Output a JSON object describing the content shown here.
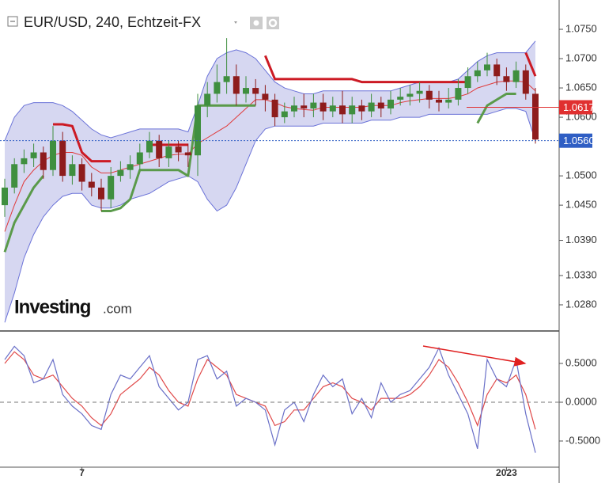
{
  "chart_data": [
    {
      "type": "candlestick",
      "title": "EUR/USD, 240, Echtzeit-FX",
      "watermark": {
        "brand": "Investing",
        "suffix": ".com"
      },
      "open": [
        1.045,
        1.048,
        1.052,
        1.053,
        1.054,
        1.051,
        1.056,
        1.05,
        1.052,
        1.049,
        1.048,
        1.046,
        1.05,
        1.051,
        1.052,
        1.054,
        1.056,
        1.053,
        1.055,
        1.054,
        1.0535,
        1.062,
        1.064,
        1.066,
        1.067,
        1.064,
        1.065,
        1.064,
        1.063,
        1.06,
        1.061,
        1.062,
        1.0615,
        1.0625,
        1.061,
        1.062,
        1.0605,
        1.062,
        1.061,
        1.0625,
        1.0615,
        1.063,
        1.0635,
        1.064,
        1.0645,
        1.063,
        1.0625,
        1.063,
        1.065,
        1.067,
        1.068,
        1.069,
        1.067,
        1.066,
        1.068,
        1.064
      ],
      "high": [
        1.0495,
        1.053,
        1.0545,
        1.0555,
        1.055,
        1.0585,
        1.0575,
        1.0535,
        1.053,
        1.0505,
        1.0495,
        1.0515,
        1.0525,
        1.0535,
        1.0555,
        1.0575,
        1.057,
        1.056,
        1.056,
        1.0555,
        1.064,
        1.066,
        1.069,
        1.0735,
        1.069,
        1.067,
        1.0665,
        1.0655,
        1.064,
        1.0625,
        1.0635,
        1.064,
        1.064,
        1.064,
        1.0635,
        1.0645,
        1.0635,
        1.063,
        1.064,
        1.0635,
        1.0645,
        1.065,
        1.0655,
        1.066,
        1.0655,
        1.0645,
        1.065,
        1.0665,
        1.0685,
        1.0695,
        1.071,
        1.07,
        1.0685,
        1.0695,
        1.069,
        1.065
      ],
      "low": [
        1.043,
        1.047,
        1.0505,
        1.0515,
        1.0495,
        1.05,
        1.049,
        1.0485,
        1.0475,
        1.0465,
        1.044,
        1.0445,
        1.049,
        1.0495,
        1.051,
        1.053,
        1.0515,
        1.0515,
        1.0525,
        1.0515,
        1.05,
        1.06,
        1.0625,
        1.064,
        1.062,
        1.0625,
        1.062,
        1.061,
        1.0585,
        1.059,
        1.06,
        1.06,
        1.06,
        1.0595,
        1.06,
        1.059,
        1.059,
        1.0595,
        1.06,
        1.06,
        1.0605,
        1.062,
        1.062,
        1.0625,
        1.0615,
        1.061,
        1.0615,
        1.062,
        1.064,
        1.066,
        1.067,
        1.0655,
        1.0645,
        1.065,
        1.063,
        1.0555
      ],
      "close": [
        1.048,
        1.052,
        1.053,
        1.054,
        1.051,
        1.056,
        1.05,
        1.052,
        1.049,
        1.048,
        1.046,
        1.05,
        1.051,
        1.052,
        1.054,
        1.056,
        1.053,
        1.055,
        1.054,
        1.0535,
        1.062,
        1.064,
        1.066,
        1.067,
        1.064,
        1.065,
        1.064,
        1.063,
        1.06,
        1.061,
        1.062,
        1.0615,
        1.0625,
        1.061,
        1.062,
        1.0605,
        1.062,
        1.061,
        1.0625,
        1.0615,
        1.063,
        1.0635,
        1.064,
        1.0645,
        1.063,
        1.0625,
        1.063,
        1.065,
        1.067,
        1.068,
        1.069,
        1.067,
        1.066,
        1.068,
        1.064,
        1.0562
      ],
      "up_color": "#3f8f3f",
      "down_color": "#8e1c1c",
      "ylim": [
        1.02354,
        1.08
      ],
      "yticks": [
        {
          "value": 1.075,
          "label": "1.0750"
        },
        {
          "value": 1.07,
          "label": "1.0700"
        },
        {
          "value": 1.065,
          "label": "1.0650"
        },
        {
          "value": 1.06,
          "label": "1.0600"
        },
        {
          "value": 1.05,
          "label": "1.0500"
        },
        {
          "value": 1.045,
          "label": "1.0450"
        },
        {
          "value": 1.039,
          "label": "1.0390"
        },
        {
          "value": 1.033,
          "label": "1.0330"
        },
        {
          "value": 1.028,
          "label": "1.0280"
        }
      ],
      "band": {
        "fill": "#d6d7f1",
        "color": "#6b73d8",
        "upper": [
          1.056,
          1.06,
          1.062,
          1.0625,
          1.0625,
          1.0625,
          1.062,
          1.061,
          1.0595,
          1.058,
          1.057,
          1.0565,
          1.057,
          1.0575,
          1.058,
          1.058,
          1.058,
          1.058,
          1.058,
          1.0575,
          1.062,
          1.067,
          1.07,
          1.071,
          1.0715,
          1.071,
          1.07,
          1.068,
          1.066,
          1.065,
          1.0645,
          1.064,
          1.064,
          1.0645,
          1.0645,
          1.0645,
          1.0645,
          1.0645,
          1.0645,
          1.0645,
          1.0645,
          1.065,
          1.0655,
          1.066,
          1.066,
          1.066,
          1.066,
          1.0665,
          1.068,
          1.0695,
          1.0705,
          1.071,
          1.071,
          1.071,
          1.071,
          1.073
        ],
        "lower": [
          1.025,
          1.03,
          1.036,
          1.04,
          1.043,
          1.045,
          1.0465,
          1.047,
          1.047,
          1.045,
          1.0445,
          1.0445,
          1.045,
          1.046,
          1.0465,
          1.047,
          1.048,
          1.049,
          1.0495,
          1.05,
          1.049,
          1.046,
          1.044,
          1.045,
          1.048,
          1.052,
          1.056,
          1.058,
          1.0585,
          1.0585,
          1.0585,
          1.0585,
          1.0585,
          1.059,
          1.059,
          1.059,
          1.059,
          1.059,
          1.0595,
          1.0595,
          1.0595,
          1.06,
          1.06,
          1.06,
          1.0605,
          1.0605,
          1.0605,
          1.0605,
          1.0605,
          1.0605,
          1.0605,
          1.061,
          1.0615,
          1.0615,
          1.061,
          1.056
        ]
      },
      "overlays": [
        {
          "color": "#e03a3a",
          "weight": "thin",
          "values": [
            1.0405,
            1.045,
            1.049,
            1.051,
            1.0525,
            1.0535,
            1.054,
            1.054,
            1.0535,
            1.0515,
            1.0505,
            1.0505,
            1.051,
            1.0515,
            1.052,
            1.0525,
            1.053,
            1.0535,
            1.0537,
            1.0537,
            1.0555,
            1.0565,
            1.0575,
            1.0585,
            1.06,
            1.0615,
            1.063,
            1.063,
            1.0625,
            1.0618,
            1.0615,
            1.0613,
            1.0612,
            1.0617,
            1.0617,
            1.0617,
            1.0617,
            1.0617,
            1.062,
            1.062,
            1.062,
            1.0625,
            1.0628,
            1.063,
            1.0632,
            1.0632,
            1.0632,
            1.0635,
            1.064,
            1.065,
            1.0655,
            1.066,
            1.0662,
            1.0662,
            1.066,
            1.0645
          ]
        },
        {
          "color": "#cc1a24",
          "weight": "bold",
          "values": [
            null,
            null,
            null,
            null,
            null,
            1.0588,
            1.0588,
            1.0585,
            1.054,
            1.0525,
            1.0525,
            1.0525,
            null,
            null,
            null,
            1.0553,
            1.0553,
            1.0553,
            1.0553,
            1.0553,
            null,
            null,
            null,
            null,
            null,
            null,
            null,
            1.0705,
            1.0665,
            1.0665,
            1.0665,
            1.0665,
            1.0665,
            1.0665,
            1.0665,
            1.0665,
            1.0665,
            1.066,
            1.066,
            1.066,
            1.066,
            1.066,
            1.066,
            1.066,
            1.066,
            1.066,
            1.066,
            1.066,
            1.066,
            null,
            null,
            null,
            null,
            null,
            1.071,
            1.067
          ]
        },
        {
          "color": "#5a9a4a",
          "weight": "bold",
          "values": [
            1.037,
            1.042,
            1.045,
            1.048,
            1.05,
            null,
            null,
            null,
            null,
            null,
            1.044,
            1.044,
            1.0445,
            1.046,
            1.051,
            1.051,
            1.051,
            1.051,
            1.051,
            1.05,
            1.062,
            1.062,
            1.062,
            1.062,
            1.062,
            1.062,
            1.062,
            null,
            null,
            null,
            null,
            null,
            null,
            null,
            null,
            null,
            null,
            null,
            null,
            null,
            null,
            null,
            null,
            null,
            null,
            null,
            null,
            null,
            null,
            1.059,
            1.062,
            1.063,
            1.064,
            1.064,
            null,
            null
          ]
        }
      ],
      "price_markers": [
        {
          "value": 1.0617,
          "label": "1.0617",
          "color": "#e03030"
        },
        {
          "value": 1.056,
          "label": "1.0560",
          "color": "#2f5ec4"
        }
      ]
    },
    {
      "type": "line",
      "categories": [
        null,
        null,
        null,
        null,
        null,
        null,
        null,
        null,
        "7",
        null,
        null,
        null,
        null,
        null,
        null,
        null,
        null,
        null,
        null,
        null,
        null,
        null,
        null,
        null,
        null,
        null,
        null,
        null,
        null,
        null,
        null,
        null,
        null,
        null,
        null,
        null,
        null,
        null,
        null,
        null,
        null,
        null,
        null,
        null,
        null,
        null,
        null,
        null,
        null,
        null,
        null,
        null,
        "2023",
        null,
        null,
        null
      ],
      "ylim": [
        -0.837,
        0.898
      ],
      "yticks": [
        {
          "value": 0.5,
          "label": "0.5000"
        },
        {
          "value": 0,
          "label": "0.0000"
        },
        {
          "value": -0.5,
          "label": "-0.5000"
        }
      ],
      "zero_line": true,
      "series": [
        {
          "color": "#6a70c8",
          "values": [
            0.55,
            0.72,
            0.6,
            0.25,
            0.3,
            0.55,
            0.1,
            -0.05,
            -0.15,
            -0.3,
            -0.35,
            0.1,
            0.35,
            0.3,
            0.45,
            0.6,
            0.2,
            0.05,
            -0.1,
            0.0,
            0.55,
            0.6,
            0.3,
            0.4,
            -0.05,
            0.05,
            0.0,
            -0.1,
            -0.55,
            -0.1,
            0.0,
            -0.25,
            0.1,
            0.35,
            0.2,
            0.3,
            -0.15,
            0.05,
            -0.2,
            0.25,
            0.0,
            0.1,
            0.15,
            0.3,
            0.45,
            0.7,
            0.35,
            0.1,
            -0.15,
            -0.6,
            0.55,
            0.3,
            0.2,
            0.55,
            -0.15,
            -0.65
          ]
        },
        {
          "color": "#e04848",
          "values": [
            0.5,
            0.65,
            0.55,
            0.35,
            0.3,
            0.35,
            0.2,
            0.05,
            -0.05,
            -0.2,
            -0.3,
            -0.15,
            0.1,
            0.2,
            0.3,
            0.45,
            0.35,
            0.15,
            0.0,
            -0.05,
            0.3,
            0.55,
            0.45,
            0.35,
            0.1,
            0.05,
            0.0,
            -0.05,
            -0.3,
            -0.25,
            -0.1,
            -0.1,
            0.05,
            0.2,
            0.25,
            0.2,
            0.05,
            0.0,
            -0.1,
            0.05,
            0.05,
            0.05,
            0.1,
            0.2,
            0.35,
            0.55,
            0.45,
            0.25,
            0.0,
            -0.3,
            0.1,
            0.3,
            0.25,
            0.35,
            0.1,
            -0.35
          ]
        }
      ]
    }
  ]
}
